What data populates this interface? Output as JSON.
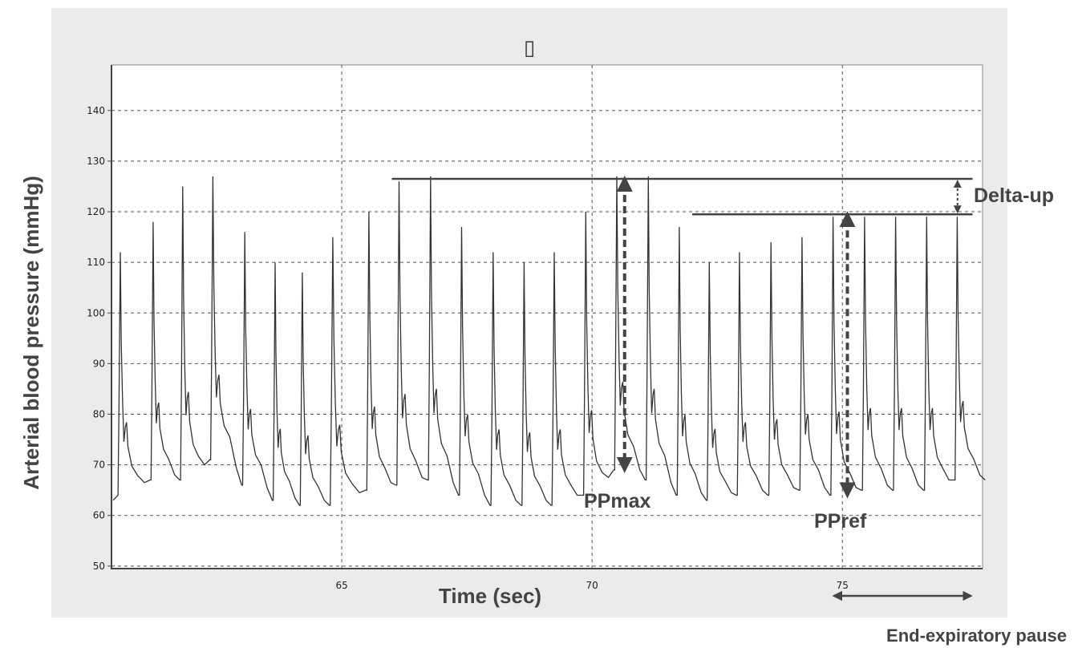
{
  "chart_data": {
    "type": "line",
    "title": "▯",
    "xlabel": "Time (sec)",
    "ylabel": "Arterial blood pressure (mmHg)",
    "xlim": [
      60.4,
      77.8
    ],
    "ylim": [
      49.5,
      149
    ],
    "x_ticks": [
      65,
      70,
      75
    ],
    "y_ticks": [
      50,
      60,
      70,
      80,
      90,
      100,
      110,
      120,
      130,
      140
    ],
    "grid": true,
    "series": [
      {
        "name": "",
        "color": "#333333",
        "beats": [
          {
            "t": 60.58,
            "sys": 112,
            "dia": 64
          },
          {
            "t": 61.24,
            "sys": 118,
            "dia": 67
          },
          {
            "t": 61.83,
            "sys": 125,
            "dia": 67
          },
          {
            "t": 62.43,
            "sys": 127,
            "dia": 71
          },
          {
            "t": 63.07,
            "sys": 116,
            "dia": 66
          },
          {
            "t": 63.68,
            "sys": 110,
            "dia": 63
          },
          {
            "t": 64.22,
            "sys": 108,
            "dia": 62
          },
          {
            "t": 64.82,
            "sys": 115,
            "dia": 62
          },
          {
            "t": 65.55,
            "sys": 120,
            "dia": 65
          },
          {
            "t": 66.15,
            "sys": 126,
            "dia": 66
          },
          {
            "t": 66.78,
            "sys": 127,
            "dia": 67
          },
          {
            "t": 67.4,
            "sys": 117,
            "dia": 64
          },
          {
            "t": 68.03,
            "sys": 112,
            "dia": 62
          },
          {
            "t": 68.65,
            "sys": 110,
            "dia": 62
          },
          {
            "t": 69.25,
            "sys": 112,
            "dia": 62
          },
          {
            "t": 69.88,
            "sys": 120,
            "dia": 64
          },
          {
            "t": 70.5,
            "sys": 127,
            "dia": 69
          },
          {
            "t": 71.13,
            "sys": 127,
            "dia": 67
          },
          {
            "t": 71.75,
            "sys": 117,
            "dia": 64
          },
          {
            "t": 72.35,
            "sys": 110,
            "dia": 63
          },
          {
            "t": 72.95,
            "sys": 112,
            "dia": 64
          },
          {
            "t": 73.58,
            "sys": 114,
            "dia": 64
          },
          {
            "t": 74.2,
            "sys": 115,
            "dia": 65
          },
          {
            "t": 74.82,
            "sys": 119,
            "dia": 64
          },
          {
            "t": 75.45,
            "sys": 119,
            "dia": 65
          },
          {
            "t": 76.07,
            "sys": 119,
            "dia": 65
          },
          {
            "t": 76.69,
            "sys": 119,
            "dia": 65
          },
          {
            "t": 77.3,
            "sys": 119,
            "dia": 67
          }
        ]
      }
    ],
    "annotations": {
      "ppmax_label": "PPmax",
      "ppref_label": "PPref",
      "delta_up_label": "Delta-up",
      "end_expiratory_label": "End-expiratory pause",
      "ppmax_line": {
        "x_start": 66.0,
        "x_end": 77.6,
        "y": 126.5
      },
      "ppref_line": {
        "x_start": 72.0,
        "x_end": 77.6,
        "y": 119.5
      },
      "ppmax_arrow": {
        "x": 70.65,
        "y_top": 126.5,
        "y_bottom": 69
      },
      "ppref_arrow": {
        "x": 75.1,
        "y_top": 119.5,
        "y_bottom": 64
      },
      "delta_arrow": {
        "x": 77.3,
        "y_top": 126.5,
        "y_bottom": 119.5
      },
      "pause_arrow": {
        "x_start": 74.8,
        "x_end": 77.6
      }
    }
  }
}
